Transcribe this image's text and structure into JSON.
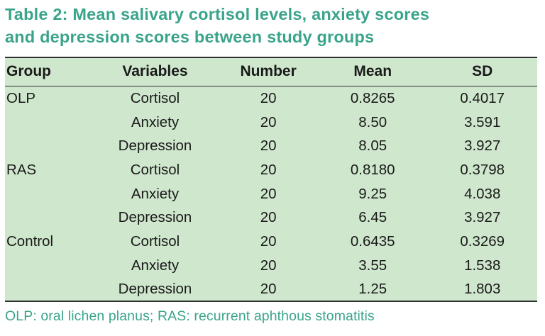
{
  "title": {
    "line1": "Table 2: Mean salivary cortisol levels, anxiety scores",
    "line2": "and depression scores between study groups"
  },
  "table": {
    "headers": [
      "Group",
      "Variables",
      "Number",
      "Mean",
      "SD"
    ],
    "rows": [
      [
        "OLP",
        "Cortisol",
        "20",
        "0.8265",
        "0.4017"
      ],
      [
        "",
        "Anxiety",
        "20",
        "8.50",
        "3.591"
      ],
      [
        "",
        "Depression",
        "20",
        "8.05",
        "3.927"
      ],
      [
        "RAS",
        "Cortisol",
        "20",
        "0.8180",
        "0.3798"
      ],
      [
        "",
        "Anxiety",
        "20",
        "9.25",
        "4.038"
      ],
      [
        "",
        "Depression",
        "20",
        "6.45",
        "3.927"
      ],
      [
        "Control",
        "Cortisol",
        "20",
        "0.6435",
        "0.3269"
      ],
      [
        "",
        "Anxiety",
        "20",
        "3.55",
        "1.538"
      ],
      [
        "",
        "Depression",
        "20",
        "1.25",
        "1.803"
      ]
    ]
  },
  "footnote": "OLP: oral lichen planus; RAS: recurrent aphthous stomatitis",
  "colors": {
    "accent": "#3aa48b",
    "table_background": "#cfe8cd",
    "rule": "#2f2f2f"
  }
}
